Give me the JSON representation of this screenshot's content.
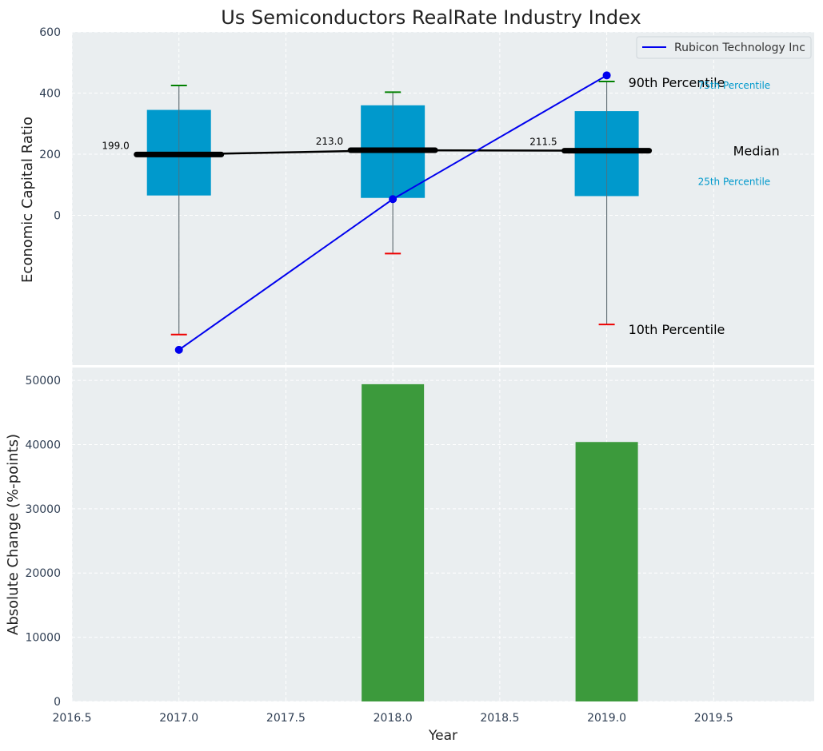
{
  "chart_data": [
    {
      "type": "box",
      "title": "Us Semiconductors RealRate Industry Index",
      "xlabel": "",
      "ylabel": "Economic Capital Ratio",
      "ylim": [
        -490,
        600
      ],
      "yticks": [
        0,
        200,
        400,
        600
      ],
      "grid": true,
      "boxes": [
        {
          "year": 2017,
          "p10": -390,
          "p25": 65,
          "median": 199.0,
          "p75": 345,
          "p90": 425,
          "median_label": "199.0"
        },
        {
          "year": 2018,
          "p10": -125,
          "p25": 57,
          "median": 213.0,
          "p75": 360,
          "p90": 403,
          "median_label": "213.0"
        },
        {
          "year": 2019,
          "p10": -357,
          "p25": 63,
          "median": 211.5,
          "p75": 341,
          "p90": 438,
          "median_label": "211.5"
        }
      ],
      "series": [
        {
          "name": "Rubicon Technology Inc",
          "color": "#0000ee",
          "x": [
            2017,
            2018,
            2019
          ],
          "y": [
            -440,
            53,
            458
          ]
        }
      ],
      "legend": {
        "position": "top-right",
        "entries": [
          "Rubicon Technology Inc"
        ]
      },
      "annotations": {
        "p90": "90th Percentile",
        "p75": "75th Percentile",
        "median": "Median",
        "p25": "25th Percentile",
        "p10": "10th Percentile"
      }
    },
    {
      "type": "bar",
      "xlabel": "Year",
      "ylabel": "Absolute Change (%-points)",
      "categories": [
        2017,
        2018,
        2019
      ],
      "values": [
        0,
        49400,
        40400
      ],
      "ylim": [
        0,
        52000
      ],
      "yticks": [
        0,
        10000,
        20000,
        30000,
        40000,
        50000
      ],
      "xlim": [
        2016.5,
        2019.97
      ],
      "xticks": [
        "2016.5",
        "2017.0",
        "2017.5",
        "2018.0",
        "2018.5",
        "2019.0",
        "2019.5"
      ],
      "grid": true
    }
  ],
  "colors": {
    "panel_bg": "#eaeef0",
    "box_fill": "#0099cc",
    "median_line": "#000000",
    "whisker": "#7a7a7a",
    "cap_high": "#008000",
    "cap_low": "#ee0000",
    "bar": "#3c9a3c",
    "tick_text": "#2f3e53",
    "small_annotation": "#0099cc"
  }
}
